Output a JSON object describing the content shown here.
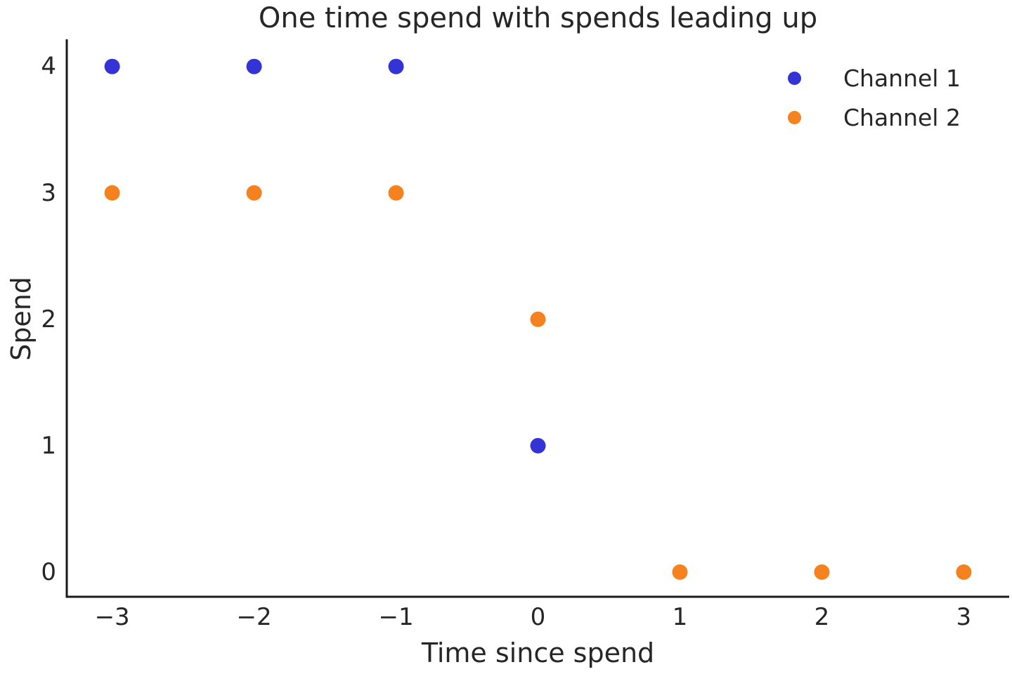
{
  "chart_data": {
    "type": "scatter",
    "title": "One time spend with spends leading up",
    "xlabel": "Time since spend",
    "ylabel": "Spend",
    "xlim": [
      -3.32,
      3.32
    ],
    "ylim": [
      -0.195,
      4.215
    ],
    "grid": false,
    "legend_position": "upper right",
    "legend_frame": false,
    "xticks": {
      "values": [
        -3,
        -2,
        -1,
        0,
        1,
        2,
        3
      ],
      "labels": [
        "−3",
        "−2",
        "−1",
        "0",
        "1",
        "2",
        "3"
      ]
    },
    "yticks": {
      "values": [
        0,
        1,
        2,
        3,
        4
      ],
      "labels": [
        "0",
        "1",
        "2",
        "3",
        "4"
      ]
    },
    "series": [
      {
        "name": "Channel 1",
        "color": "#3333d6",
        "points": [
          [
            -3,
            4
          ],
          [
            -2,
            4
          ],
          [
            -1,
            4
          ],
          [
            0,
            1
          ]
        ]
      },
      {
        "name": "Channel 2",
        "color": "#f5821e",
        "points": [
          [
            -3,
            3
          ],
          [
            -2,
            3
          ],
          [
            -1,
            3
          ],
          [
            0,
            2
          ],
          [
            1,
            0
          ],
          [
            2,
            0
          ],
          [
            3,
            0
          ]
        ]
      }
    ],
    "marker": {
      "shape": "circle",
      "radius": 11
    },
    "axis_color": "#1a1a1a",
    "text_color": "#262626",
    "tick_font_size": 34
  }
}
